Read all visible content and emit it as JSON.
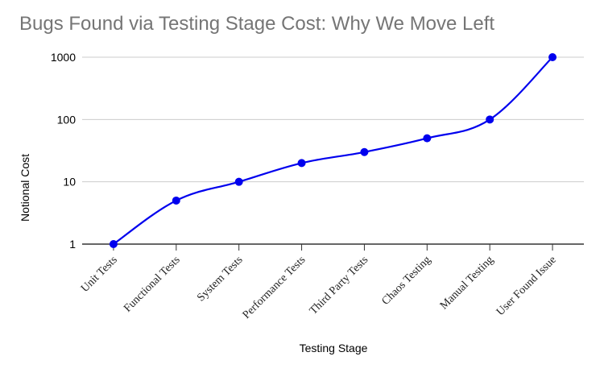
{
  "chart_data": {
    "type": "line",
    "title": "Bugs Found via Testing Stage Cost: Why We Move Left",
    "xlabel": "Testing Stage",
    "ylabel": "Notional Cost",
    "yscale": "log",
    "ylim": [
      1,
      1000
    ],
    "yticks": [
      "1",
      "10",
      "100",
      "1000"
    ],
    "grid": true,
    "categories": [
      "Unit Tests",
      "Functional Tests",
      "System Tests",
      "Performance Tests",
      "Third Party Tests",
      "Chaos Testing",
      "Manual Testing",
      "User Found Issue"
    ],
    "series": [
      {
        "values": [
          1,
          5,
          10,
          20,
          30,
          50,
          100,
          1000
        ],
        "color": "#0000ee"
      }
    ]
  }
}
